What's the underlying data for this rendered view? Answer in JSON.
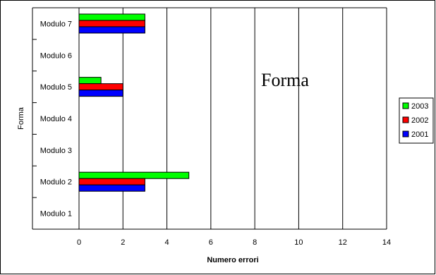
{
  "chart_data": {
    "type": "bar",
    "orientation": "horizontal",
    "title": "Forma",
    "xlabel": "Numero errori",
    "ylabel": "Forma",
    "categories": [
      "Modulo 1",
      "Modulo 2",
      "Modulo 3",
      "Modulo 4",
      "Modulo 5",
      "Modulo 6",
      "Modulo 7"
    ],
    "series": [
      {
        "name": "2001",
        "color": "#0000ff",
        "values": [
          0,
          3,
          0,
          0,
          2,
          0,
          3
        ]
      },
      {
        "name": "2002",
        "color": "#ff0000",
        "values": [
          0,
          3,
          0,
          0,
          2,
          0,
          3
        ]
      },
      {
        "name": "2003",
        "color": "#00ff00",
        "values": [
          0,
          5,
          0,
          0,
          1,
          0,
          3
        ]
      }
    ],
    "xlim": [
      0,
      14
    ],
    "xticks": [
      "0",
      "2",
      "4",
      "6",
      "8",
      "10",
      "12",
      "14"
    ],
    "grid": "vertical",
    "legend_position": "right",
    "legend_order": [
      "2003",
      "2002",
      "2001"
    ]
  }
}
